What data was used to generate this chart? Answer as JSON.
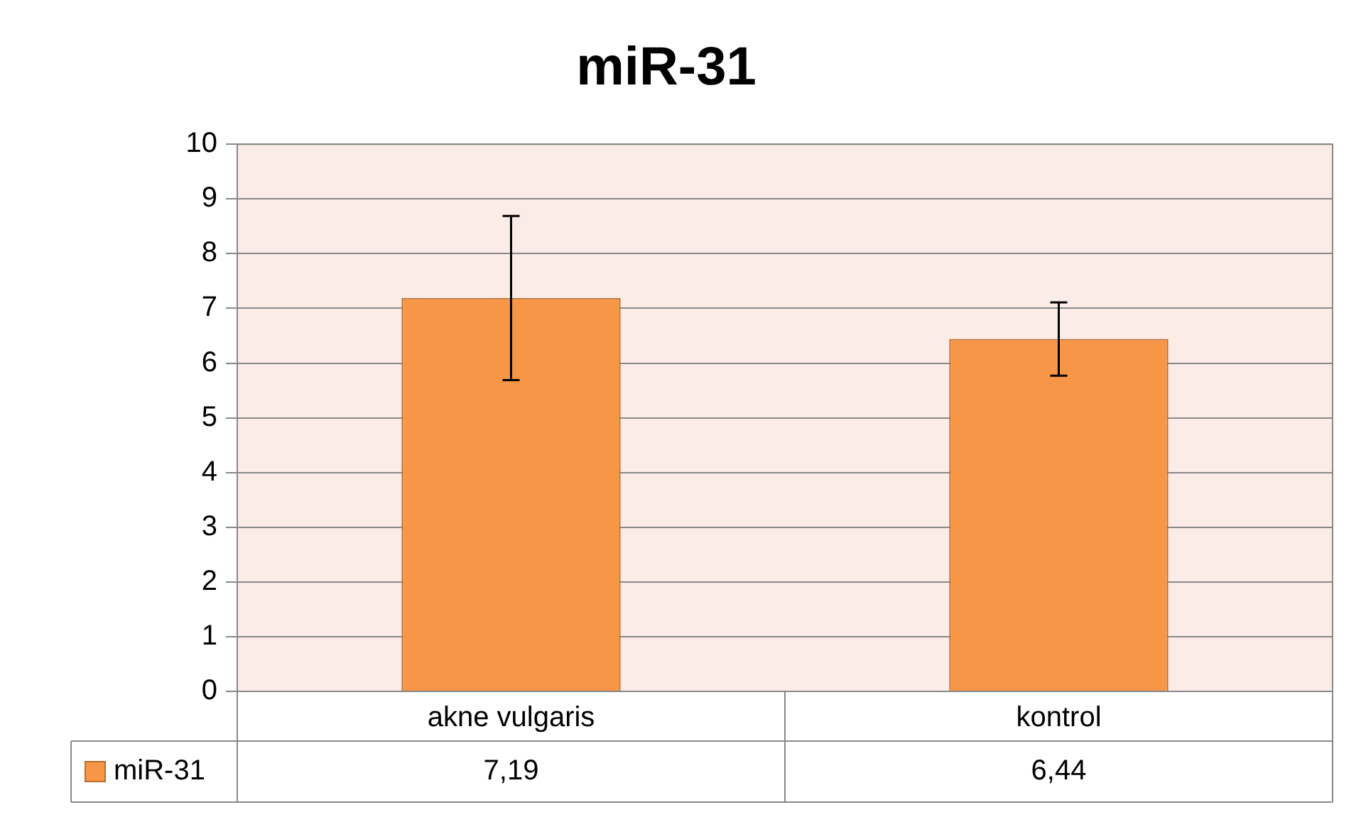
{
  "chart_data": {
    "type": "bar",
    "title": "miR-31",
    "categories": [
      "akne vulgaris",
      "kontrol"
    ],
    "series": [
      {
        "name": "miR-31",
        "color": "#f79646",
        "values": [
          7.19,
          6.44
        ],
        "errors": [
          1.5,
          0.67
        ],
        "value_labels": [
          "7,19",
          "6,44"
        ]
      }
    ],
    "ylim": [
      0,
      10
    ],
    "yticks": [
      0,
      1,
      2,
      3,
      4,
      5,
      6,
      7,
      8,
      9,
      10
    ],
    "grid": "y",
    "legend": "bottom"
  }
}
